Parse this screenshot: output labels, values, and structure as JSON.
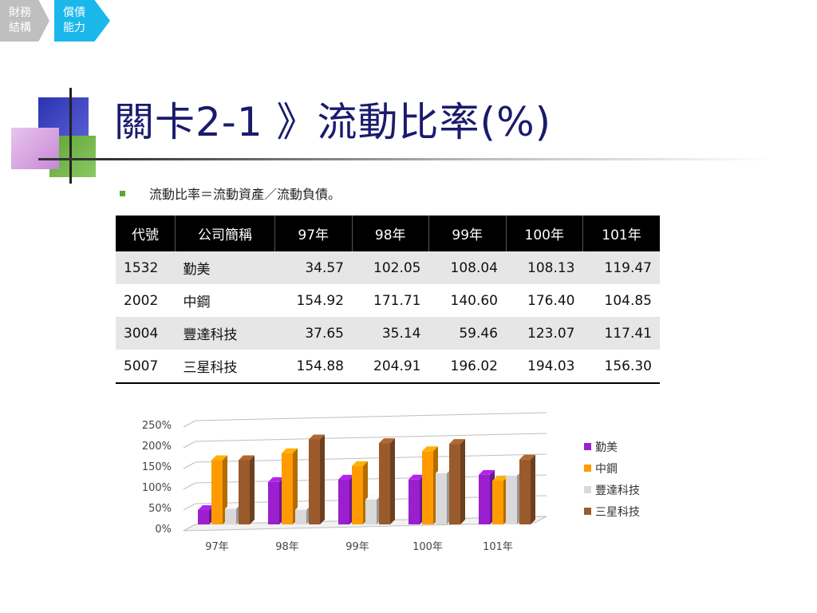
{
  "breadcrumb": [
    {
      "line1": "財務",
      "line2": "結構"
    },
    {
      "line1": "償債",
      "line2": "能力"
    }
  ],
  "title": "關卡2-1 》流動比率(%)",
  "bullet": "流動比率＝流動資產／流動負債。",
  "table": {
    "headers": [
      "代號",
      "公司簡稱",
      "97年",
      "98年",
      "99年",
      "100年",
      "101年"
    ],
    "rows": [
      {
        "code": "1532",
        "name": "勤美",
        "values": [
          "34.57",
          "102.05",
          "108.04",
          "108.13",
          "119.47"
        ]
      },
      {
        "code": "2002",
        "name": "中鋼",
        "values": [
          "154.92",
          "171.71",
          "140.60",
          "176.40",
          "104.85"
        ]
      },
      {
        "code": "3004",
        "name": "豐達科技",
        "values": [
          "37.65",
          "35.14",
          "59.46",
          "123.07",
          "117.41"
        ]
      },
      {
        "code": "5007",
        "name": "三星科技",
        "values": [
          "154.88",
          "204.91",
          "196.02",
          "194.03",
          "156.30"
        ]
      }
    ]
  },
  "chart_data": {
    "type": "bar",
    "categories": [
      "97年",
      "98年",
      "99年",
      "100年",
      "101年"
    ],
    "series": [
      {
        "name": "勤美",
        "values": [
          34.57,
          102.05,
          108.04,
          108.13,
          119.47
        ],
        "color": "#9b1fcf"
      },
      {
        "name": "中鋼",
        "values": [
          154.92,
          171.71,
          140.6,
          176.4,
          104.85
        ],
        "color": "#ff9a00"
      },
      {
        "name": "豐達科技",
        "values": [
          37.65,
          35.14,
          59.46,
          123.07,
          117.41
        ],
        "color": "#d9d9d9"
      },
      {
        "name": "三星科技",
        "values": [
          154.88,
          204.91,
          196.02,
          194.03,
          156.3
        ],
        "color": "#9a5a2c"
      }
    ],
    "yticks": [
      "0%",
      "50%",
      "100%",
      "150%",
      "200%",
      "250%"
    ],
    "ylim": [
      0,
      250
    ],
    "grid": true,
    "legend": "right",
    "style": "3d-column"
  }
}
